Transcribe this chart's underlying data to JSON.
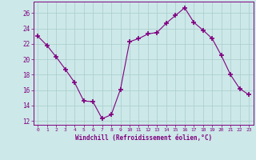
{
  "x": [
    0,
    1,
    2,
    3,
    4,
    5,
    6,
    7,
    8,
    9,
    10,
    11,
    12,
    13,
    14,
    15,
    16,
    17,
    18,
    19,
    20,
    21,
    22,
    23
  ],
  "y": [
    23,
    21.8,
    20.3,
    18.7,
    17.0,
    14.6,
    14.5,
    12.3,
    12.8,
    16.1,
    22.3,
    22.7,
    23.3,
    23.5,
    24.7,
    25.7,
    26.7,
    24.8,
    23.8,
    22.7,
    20.5,
    18.0,
    16.2,
    15.4
  ],
  "line_color": "#800080",
  "marker": "+",
  "marker_size": 4,
  "marker_lw": 1.2,
  "bg_color": "#cce8e8",
  "grid_color": "#aacccc",
  "xlabel": "Windchill (Refroidissement éolien,°C)",
  "tick_color": "#800080",
  "xlim": [
    -0.5,
    23.5
  ],
  "ylim": [
    11.5,
    27.5
  ],
  "yticks": [
    12,
    14,
    16,
    18,
    20,
    22,
    24,
    26
  ],
  "xticks": [
    0,
    1,
    2,
    3,
    4,
    5,
    6,
    7,
    8,
    9,
    10,
    11,
    12,
    13,
    14,
    15,
    16,
    17,
    18,
    19,
    20,
    21,
    22,
    23
  ]
}
